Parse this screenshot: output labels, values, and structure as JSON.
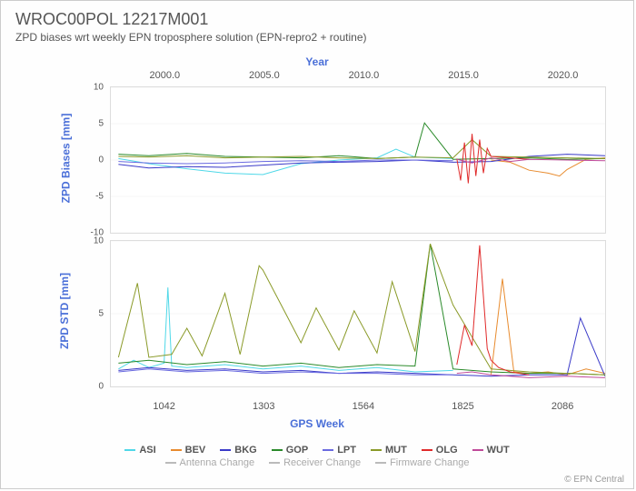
{
  "title": "WROC00POL 12217M001",
  "subtitle": "ZPD biases wrt weekly EPN troposphere solution (EPN-repro2 + routine)",
  "year_label": "Year",
  "xlabel": "GPS Week",
  "ylabel_top": "ZPD Biases [mm]",
  "ylabel_bottom": "ZPD STD [mm]",
  "credit": "© EPN Central",
  "axes": {
    "top_years": [
      2000.0,
      2005.0,
      2010.0,
      2015.0,
      2020.0
    ],
    "x_ticks": [
      1042,
      1303,
      1564,
      1825,
      2086
    ],
    "x_min": 900,
    "x_max": 2200,
    "bias_ylim": [
      -10,
      10
    ],
    "bias_ticks": [
      -10,
      -5,
      0,
      5,
      10
    ],
    "std_ylim": [
      0,
      10
    ],
    "std_ticks": [
      0,
      5,
      10
    ]
  },
  "colors": {
    "ASI": "#4fd8e8",
    "BEV": "#e88b2e",
    "BKG": "#3a3ac8",
    "GOP": "#2a8a2a",
    "LPT": "#6a6ae0",
    "MUT": "#8a9a28",
    "OLG": "#e02a2a",
    "WUT": "#c04a9a",
    "grid": "#eeeeee",
    "axis_text": "#555555",
    "label": "#4a6fd8",
    "change": "#bbbbbb"
  },
  "series_order": [
    "ASI",
    "BEV",
    "BKG",
    "GOP",
    "LPT",
    "MUT",
    "OLG",
    "WUT"
  ],
  "legend_changes": [
    "Antenna Change",
    "Receiver Change",
    "Firmware Change"
  ],
  "bias_series": {
    "ASI": {
      "x": [
        920,
        1000,
        1100,
        1200,
        1300,
        1400,
        1500,
        1600,
        1650,
        1700,
        1800
      ],
      "y": [
        0.2,
        -0.5,
        -1.2,
        -1.8,
        -2.0,
        -0.5,
        0.0,
        0.3,
        1.5,
        0.4,
        0.2
      ]
    },
    "BEV": {
      "x": [
        1900,
        1950,
        2000,
        2050,
        2080,
        2100,
        2150,
        2200
      ],
      "y": [
        0.0,
        -0.3,
        -1.4,
        -1.8,
        -2.2,
        -1.3,
        0.1,
        0.3
      ]
    },
    "BKG": {
      "x": [
        920,
        1000,
        1100,
        1200,
        1300,
        1400,
        1500,
        1600,
        1700,
        1800,
        1900,
        2000,
        2100,
        2200
      ],
      "y": [
        -0.6,
        -1.1,
        -0.9,
        -1.0,
        -0.7,
        -0.4,
        -0.3,
        -0.2,
        0.0,
        -0.3,
        -0.2,
        0.5,
        0.8,
        0.6
      ]
    },
    "GOP": {
      "x": [
        920,
        1000,
        1100,
        1200,
        1300,
        1400,
        1500,
        1600,
        1700,
        1725,
        1800,
        1900,
        2000,
        2100,
        2200
      ],
      "y": [
        0.8,
        0.6,
        0.9,
        0.5,
        0.4,
        0.3,
        0.6,
        0.2,
        0.4,
        5.1,
        0.1,
        0.2,
        0.3,
        0.1,
        0.2
      ]
    },
    "LPT": {
      "x": [
        920,
        1000,
        1100,
        1200,
        1300,
        1400,
        1500,
        1600,
        1700,
        1800
      ],
      "y": [
        -0.2,
        -0.4,
        -0.5,
        -0.4,
        -0.2,
        -0.1,
        -0.2,
        0.0,
        0.0,
        -0.1
      ]
    },
    "MUT": {
      "x": [
        920,
        1000,
        1100,
        1200,
        1300,
        1400,
        1500,
        1600,
        1700,
        1800,
        1850,
        1900,
        2000,
        2100,
        2200
      ],
      "y": [
        0.5,
        0.4,
        0.6,
        0.3,
        0.4,
        0.5,
        0.3,
        0.2,
        0.4,
        0.3,
        2.8,
        0.5,
        0.4,
        0.3,
        0.2
      ]
    },
    "OLG": {
      "x": [
        1810,
        1820,
        1830,
        1840,
        1850,
        1860,
        1870,
        1880,
        1890,
        1900,
        1950,
        2000
      ],
      "y": [
        0.2,
        -2.8,
        2.4,
        -3.2,
        3.6,
        -2.2,
        2.8,
        -1.8,
        1.6,
        0.5,
        0.3,
        0.1
      ]
    },
    "WUT": {
      "x": [
        1810,
        1850,
        1900,
        1950,
        2000,
        2100,
        2200
      ],
      "y": [
        0.1,
        -0.4,
        0.3,
        -0.2,
        0.1,
        0.0,
        -0.1
      ]
    }
  },
  "std_series": {
    "ASI": {
      "x": [
        920,
        960,
        1000,
        1040,
        1050,
        1060,
        1100,
        1200,
        1300,
        1400,
        1500,
        1600,
        1700,
        1800
      ],
      "y": [
        1.2,
        1.8,
        1.3,
        1.6,
        6.8,
        1.4,
        1.3,
        1.5,
        1.2,
        1.4,
        1.1,
        1.3,
        1.0,
        1.1
      ]
    },
    "BEV": {
      "x": [
        1900,
        1930,
        1960,
        2000,
        2050,
        2100,
        2150,
        2200
      ],
      "y": [
        0.8,
        7.4,
        1.0,
        0.9,
        1.0,
        0.8,
        1.2,
        0.9
      ]
    },
    "BKG": {
      "x": [
        920,
        1000,
        1100,
        1200,
        1300,
        1400,
        1500,
        1600,
        1700,
        1800,
        1900,
        2000,
        2100,
        2135,
        2200
      ],
      "y": [
        1.1,
        1.3,
        1.1,
        1.2,
        1.0,
        1.1,
        0.9,
        1.0,
        0.9,
        0.8,
        0.7,
        0.8,
        0.8,
        4.7,
        0.7
      ]
    },
    "GOP": {
      "x": [
        920,
        1000,
        1100,
        1200,
        1300,
        1400,
        1500,
        1600,
        1700,
        1740,
        1800,
        1900,
        2000,
        2100,
        2200
      ],
      "y": [
        1.6,
        1.8,
        1.5,
        1.7,
        1.4,
        1.6,
        1.3,
        1.5,
        1.4,
        9.8,
        1.2,
        1.0,
        0.9,
        0.9,
        0.8
      ]
    },
    "LPT": {
      "x": [
        920,
        1000,
        1100,
        1200,
        1300,
        1400,
        1500,
        1600,
        1700,
        1800
      ],
      "y": [
        1.0,
        1.2,
        1.0,
        1.1,
        0.9,
        1.0,
        0.9,
        0.9,
        0.8,
        0.8
      ]
    },
    "MUT": {
      "x": [
        920,
        970,
        1000,
        1060,
        1100,
        1140,
        1200,
        1240,
        1290,
        1300,
        1350,
        1400,
        1440,
        1500,
        1540,
        1600,
        1640,
        1700,
        1740,
        1800,
        1900,
        2000,
        2100,
        2200
      ],
      "y": [
        2.0,
        7.1,
        2.0,
        2.2,
        4.0,
        2.1,
        6.4,
        2.2,
        8.3,
        8.0,
        5.5,
        3.0,
        5.4,
        2.5,
        5.2,
        2.3,
        7.2,
        2.4,
        9.8,
        5.6,
        1.2,
        1.0,
        0.9,
        0.8
      ]
    },
    "OLG": {
      "x": [
        1810,
        1830,
        1850,
        1870,
        1890,
        1900,
        1920,
        1950,
        2000
      ],
      "y": [
        1.5,
        4.2,
        2.8,
        9.7,
        2.6,
        1.8,
        1.3,
        1.0,
        0.8
      ]
    },
    "WUT": {
      "x": [
        1810,
        1850,
        1900,
        1950,
        2000,
        2100,
        2200
      ],
      "y": [
        0.9,
        1.0,
        0.8,
        0.7,
        0.6,
        0.7,
        0.6
      ]
    }
  }
}
